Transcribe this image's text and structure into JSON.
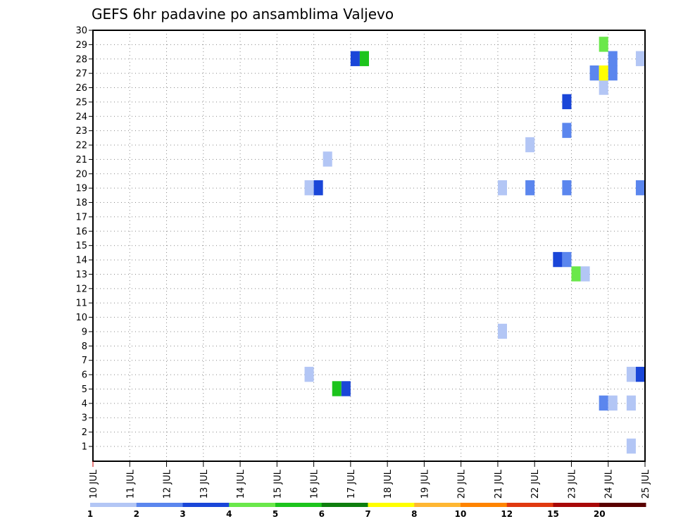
{
  "chart_data": {
    "type": "heatmap",
    "title": "GEFS 6hr padavine po ansamblima Valjevo",
    "xlabel": "",
    "ylabel": "",
    "x_tick_labels": [
      "10 JUL",
      "11 JUL",
      "12 JUL",
      "13 JUL",
      "14 JUL",
      "15 JUL",
      "16 JUL",
      "17 JUL",
      "18 JUL",
      "19 JUL",
      "20 JUL",
      "21 JUL",
      "22 JUL",
      "23 JUL",
      "24 JUL",
      "25 JUL"
    ],
    "xlim": [
      0,
      15
    ],
    "y_tick_labels": [
      "1",
      "2",
      "3",
      "4",
      "5",
      "6",
      "7",
      "8",
      "9",
      "10",
      "11",
      "12",
      "13",
      "14",
      "15",
      "16",
      "17",
      "18",
      "19",
      "20",
      "21",
      "22",
      "23",
      "24",
      "25",
      "26",
      "27",
      "28",
      "29",
      "30"
    ],
    "ylim": [
      0,
      30
    ],
    "grid": true,
    "colorbar": {
      "labels": [
        "1",
        "2",
        "3",
        "4",
        "5",
        "6",
        "7",
        "8",
        "10",
        "12",
        "15",
        "20"
      ],
      "colors": [
        "#b3c6f5",
        "#5b86ee",
        "#1a46d8",
        "#6ae84a",
        "#1cc41c",
        "#0e7e0e",
        "#ffff00",
        "#ffb732",
        "#ff8400",
        "#e0390f",
        "#a80808",
        "#5a0000"
      ]
    },
    "cells": [
      {
        "day": 5.875,
        "member": 6,
        "level": 1
      },
      {
        "day": 5.875,
        "member": 19,
        "level": 1
      },
      {
        "day": 6.125,
        "member": 19,
        "level": 3
      },
      {
        "day": 6.375,
        "member": 21,
        "level": 1
      },
      {
        "day": 6.625,
        "member": 5,
        "level": 5
      },
      {
        "day": 6.875,
        "member": 5,
        "level": 3
      },
      {
        "day": 7.125,
        "member": 28,
        "level": 3
      },
      {
        "day": 7.375,
        "member": 28,
        "level": 5
      },
      {
        "day": 11.125,
        "member": 9,
        "level": 1
      },
      {
        "day": 11.125,
        "member": 19,
        "level": 1
      },
      {
        "day": 11.875,
        "member": 19,
        "level": 2
      },
      {
        "day": 11.875,
        "member": 22,
        "level": 1
      },
      {
        "day": 12.625,
        "member": 14,
        "level": 3
      },
      {
        "day": 12.875,
        "member": 14,
        "level": 2
      },
      {
        "day": 12.875,
        "member": 19,
        "level": 2
      },
      {
        "day": 12.875,
        "member": 23,
        "level": 2
      },
      {
        "day": 12.875,
        "member": 25,
        "level": 3
      },
      {
        "day": 13.125,
        "member": 13,
        "level": 4
      },
      {
        "day": 13.375,
        "member": 13,
        "level": 1
      },
      {
        "day": 13.625,
        "member": 27,
        "level": 2
      },
      {
        "day": 13.875,
        "member": 4,
        "level": 2
      },
      {
        "day": 13.875,
        "member": 26,
        "level": 1
      },
      {
        "day": 13.875,
        "member": 27,
        "level": 7
      },
      {
        "day": 13.875,
        "member": 29,
        "level": 4
      },
      {
        "day": 14.125,
        "member": 4,
        "level": 1
      },
      {
        "day": 14.125,
        "member": 27,
        "level": 2
      },
      {
        "day": 14.125,
        "member": 28,
        "level": 2
      },
      {
        "day": 14.625,
        "member": 1,
        "level": 1
      },
      {
        "day": 14.625,
        "member": 4,
        "level": 1
      },
      {
        "day": 14.625,
        "member": 6,
        "level": 1
      },
      {
        "day": 14.875,
        "member": 6,
        "level": 3
      },
      {
        "day": 14.875,
        "member": 19,
        "level": 2
      },
      {
        "day": 14.875,
        "member": 28,
        "level": 1
      }
    ]
  }
}
